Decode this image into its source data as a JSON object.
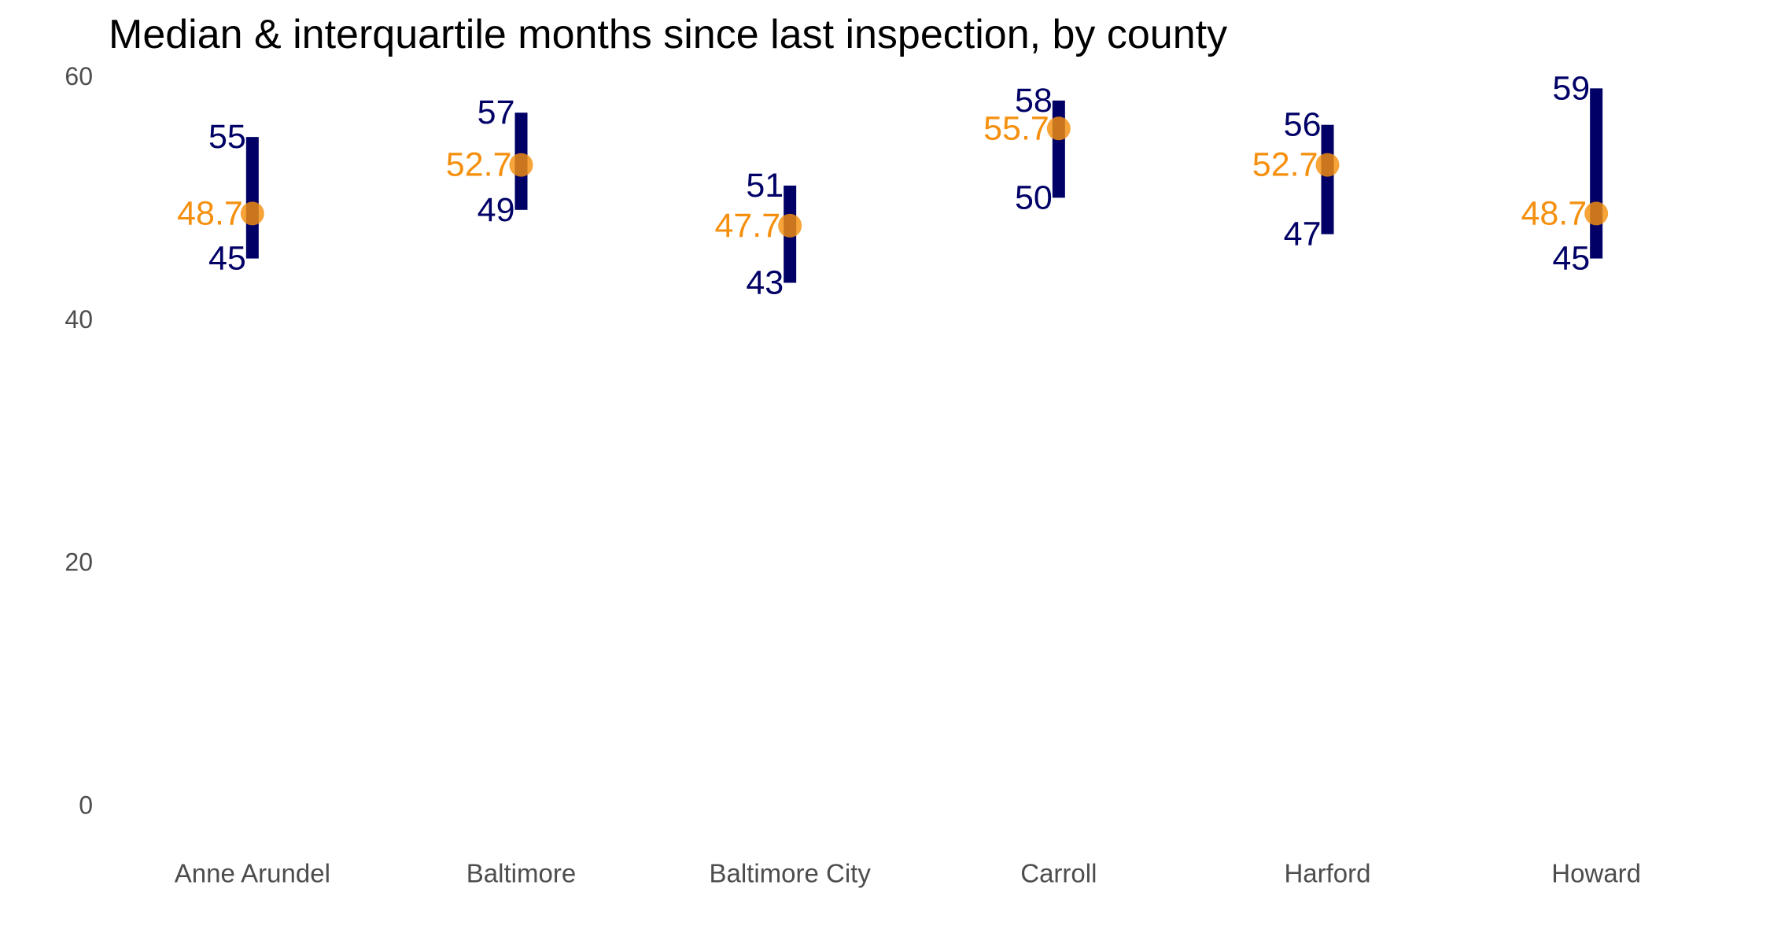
{
  "chart_data": {
    "type": "pointrange",
    "title": "Median & interquartile months since last inspection, by county",
    "xlabel": "",
    "ylabel": "",
    "ylim": [
      -3,
      62
    ],
    "y_ticks": [
      0,
      20,
      40,
      60
    ],
    "grid": false,
    "categories": [
      "Anne Arundel",
      "Baltimore",
      "Baltimore City",
      "Carroll",
      "Harford",
      "Howard"
    ],
    "series": [
      {
        "values": [
          48.7,
          52.7,
          47.7,
          55.7,
          52.7,
          48.7
        ]
      },
      {
        "values": [
          45,
          49,
          43,
          50,
          47,
          45
        ]
      },
      {
        "values": [
          55,
          57,
          51,
          58,
          56,
          59
        ]
      }
    ],
    "median_labels": [
      "48.7",
      "52.7",
      "47.7",
      "55.7",
      "52.7",
      "48.7"
    ],
    "q1_labels": [
      "45",
      "49",
      "43",
      "50",
      "47",
      "45"
    ],
    "q3_labels": [
      "55",
      "57",
      "51",
      "58",
      "56",
      "59"
    ],
    "colors": {
      "range": "#000066",
      "median": "#f5900f",
      "median_label": "#f5900f",
      "range_label": "#000066"
    }
  }
}
